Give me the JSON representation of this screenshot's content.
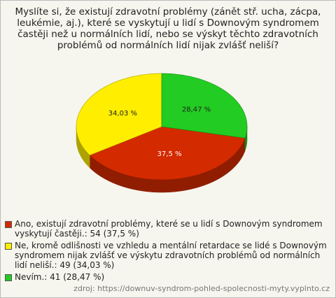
{
  "chart_data": {
    "type": "pie",
    "title": "Myslíte si, že existují zdravotní problémy (zánět stř. ucha, zácpa, leukémie, aj.), které se vyskytují u lidí s Downovým syndromem častěji než u normálních lidí, nebo se výskyt těchto zdravotních problémů od normálních lidí nijak zvlášť neliší?",
    "categories": [
      "Ano, existují zdravotní problémy, které se u lidí s Downovým syndromem vyskytují častěji.: 54 (37,5 %)",
      "Ne, kromě odlišnosti ve vzhledu a mentální retardace se lidé s Downovým syndromem nijak zvlášť ve výskytu zdravotních problémů od normálních lidí neliší.: 49 (34,03 %)",
      "Nevím.: 41 (28,47 %)"
    ],
    "values": [
      37.5,
      34.03,
      28.47
    ],
    "value_labels": [
      "37,5 %",
      "34,03 %",
      "28,47 %"
    ],
    "colors": [
      "#d42a00",
      "#ffee00",
      "#22cc22"
    ],
    "source": "zdroj: https://downuv-syndrom-pohled-spolecnosti-myty.vyplnto.cz"
  }
}
